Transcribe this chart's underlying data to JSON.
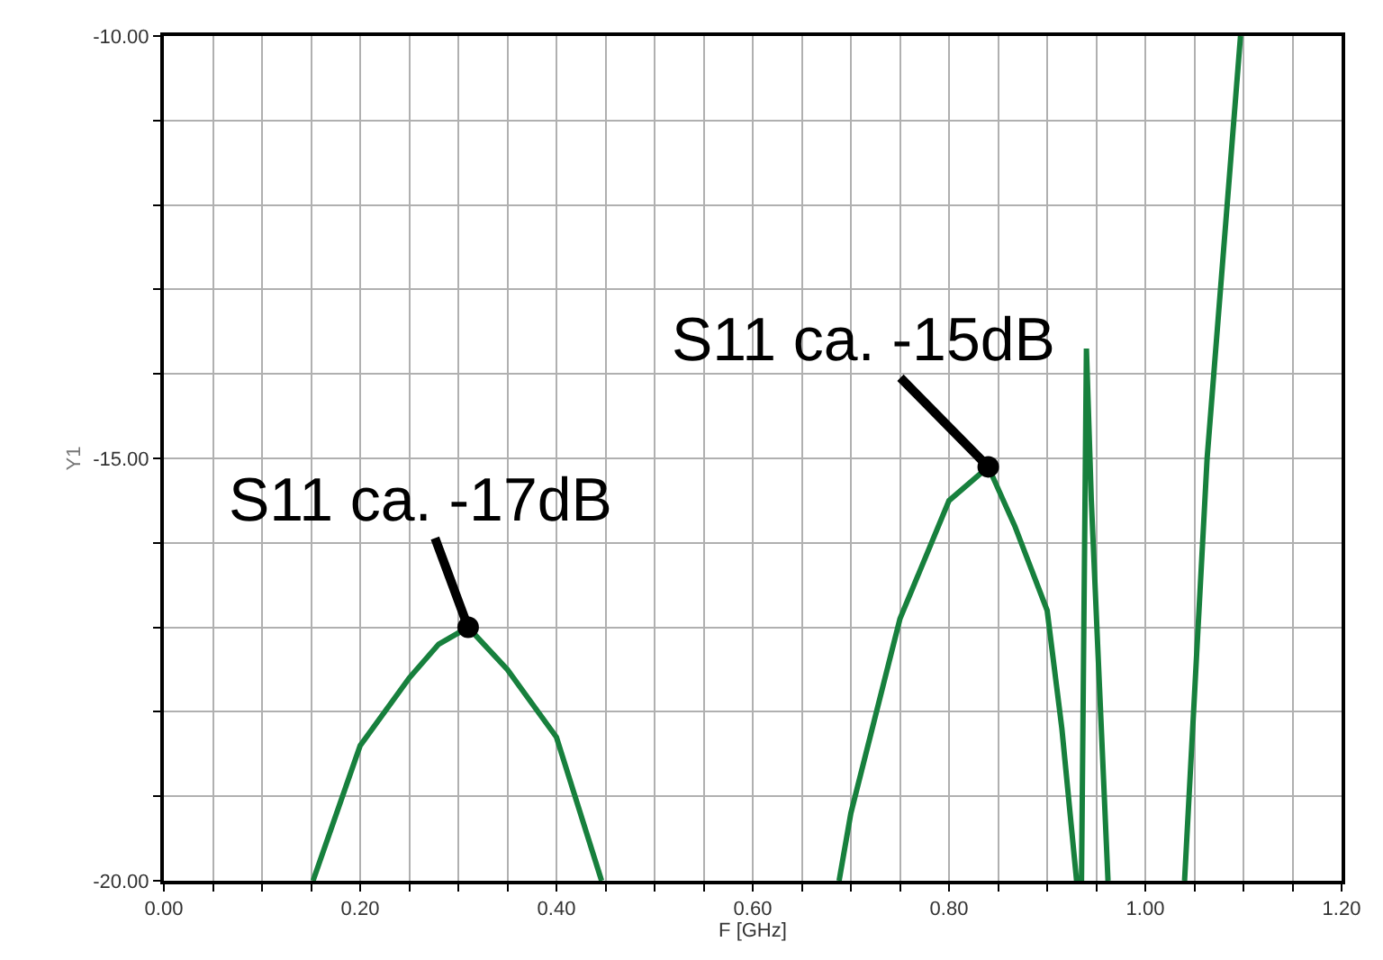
{
  "chart_data": {
    "type": "line",
    "xlabel": "F [GHz]",
    "ylabel": "Y1",
    "series": [
      {
        "color": "#17803d",
        "x": [
          0.152,
          0.2,
          0.25,
          0.28,
          0.31,
          0.35,
          0.4,
          0.446,
          0.5,
          0.688,
          0.7,
          0.75,
          0.8,
          0.84,
          0.867,
          0.9,
          0.915,
          0.93,
          0.935,
          0.94,
          0.945,
          0.962,
          1.0,
          1.04,
          1.063,
          1.097
        ],
        "values": [
          -20,
          -18.4,
          -17.6,
          -17.2,
          -17.0,
          -17.5,
          -18.3,
          -20,
          null,
          -20,
          -19.2,
          -16.9,
          -15.5,
          -15.1,
          -15.8,
          -16.8,
          -18.2,
          -20,
          -20,
          -13.7,
          -15.5,
          -20,
          null,
          -20,
          -15,
          -10
        ]
      }
    ],
    "xlim": [
      0,
      1.2
    ],
    "ylim": [
      -20,
      -10
    ],
    "xticks": [
      {
        "value": 0,
        "label": "0.00"
      },
      {
        "value": 0.05,
        "label": null
      },
      {
        "value": 0.1,
        "label": null
      },
      {
        "value": 0.15,
        "label": null
      },
      {
        "value": 0.2,
        "label": "0.20"
      },
      {
        "value": 0.25,
        "label": null
      },
      {
        "value": 0.3,
        "label": null
      },
      {
        "value": 0.35,
        "label": null
      },
      {
        "value": 0.4,
        "label": "0.40"
      },
      {
        "value": 0.45,
        "label": null
      },
      {
        "value": 0.5,
        "label": null
      },
      {
        "value": 0.55,
        "label": null
      },
      {
        "value": 0.6,
        "label": "0.60"
      },
      {
        "value": 0.65,
        "label": null
      },
      {
        "value": 0.7,
        "label": null
      },
      {
        "value": 0.75,
        "label": null
      },
      {
        "value": 0.8,
        "label": "0.80"
      },
      {
        "value": 0.85,
        "label": null
      },
      {
        "value": 0.9,
        "label": null
      },
      {
        "value": 0.95,
        "label": null
      },
      {
        "value": 1.0,
        "label": "1.00"
      },
      {
        "value": 1.05,
        "label": null
      },
      {
        "value": 1.1,
        "label": null
      },
      {
        "value": 1.15,
        "label": null
      },
      {
        "value": 1.2,
        "label": "1.20"
      }
    ],
    "yticks": [
      {
        "value": -20,
        "label": "-20.00"
      },
      {
        "value": -19,
        "label": null
      },
      {
        "value": -18,
        "label": null
      },
      {
        "value": -17,
        "label": null
      },
      {
        "value": -16,
        "label": null
      },
      {
        "value": -15,
        "label": "-15.00"
      },
      {
        "value": -14,
        "label": null
      },
      {
        "value": -13,
        "label": null
      },
      {
        "value": -12,
        "label": null
      },
      {
        "value": -11,
        "label": null
      },
      {
        "value": -10,
        "label": "-10.00"
      }
    ],
    "grid": true,
    "marker": "none",
    "line_style": "solid",
    "annotations": [
      {
        "text": "S11 ca. -17dB",
        "x": 0.31,
        "y": -17.0
      },
      {
        "text": "S11 ca. -15dB",
        "x": 0.84,
        "y": -15.1
      }
    ]
  }
}
